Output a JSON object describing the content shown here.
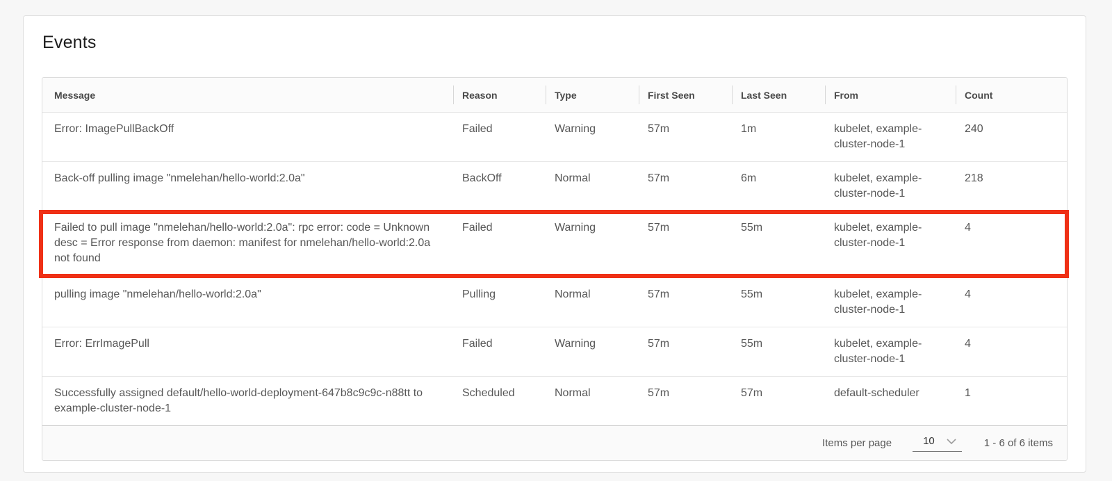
{
  "card": {
    "title": "Events"
  },
  "table": {
    "columns": [
      {
        "key": "message",
        "label": "Message"
      },
      {
        "key": "reason",
        "label": "Reason"
      },
      {
        "key": "type",
        "label": "Type"
      },
      {
        "key": "first_seen",
        "label": "First Seen"
      },
      {
        "key": "last_seen",
        "label": "Last Seen"
      },
      {
        "key": "from",
        "label": "From"
      },
      {
        "key": "count",
        "label": "Count"
      }
    ],
    "rows": [
      {
        "message": "Error: ImagePullBackOff",
        "reason": "Failed",
        "type": "Warning",
        "first_seen": "57m",
        "last_seen": "1m",
        "from": "kubelet, example-cluster-node-1",
        "count": "240",
        "highlighted": false
      },
      {
        "message": "Back-off pulling image \"nmelehan/hello-world:2.0a\"",
        "reason": "BackOff",
        "type": "Normal",
        "first_seen": "57m",
        "last_seen": "6m",
        "from": "kubelet, example-cluster-node-1",
        "count": "218",
        "highlighted": false
      },
      {
        "message": "Failed to pull image \"nmelehan/hello-world:2.0a\": rpc error: code = Unknown desc = Error response from daemon: manifest for nmelehan/hello-world:2.0a not found",
        "reason": "Failed",
        "type": "Warning",
        "first_seen": "57m",
        "last_seen": "55m",
        "from": "kubelet, example-cluster-node-1",
        "count": "4",
        "highlighted": true
      },
      {
        "message": "pulling image \"nmelehan/hello-world:2.0a\"",
        "reason": "Pulling",
        "type": "Normal",
        "first_seen": "57m",
        "last_seen": "55m",
        "from": "kubelet, example-cluster-node-1",
        "count": "4",
        "highlighted": false
      },
      {
        "message": "Error: ErrImagePull",
        "reason": "Failed",
        "type": "Warning",
        "first_seen": "57m",
        "last_seen": "55m",
        "from": "kubelet, example-cluster-node-1",
        "count": "4",
        "highlighted": false
      },
      {
        "message": "Successfully assigned default/hello-world-deployment-647b8c9c9c-n88tt to example-cluster-node-1",
        "reason": "Scheduled",
        "type": "Normal",
        "first_seen": "57m",
        "last_seen": "57m",
        "from": "default-scheduler",
        "count": "1",
        "highlighted": false
      }
    ],
    "footer": {
      "items_per_page_label": "Items per page",
      "items_per_page_value": "10",
      "range_text": "1 - 6 of 6 items"
    }
  },
  "icons": {
    "page_size_chevron": "chevron-down"
  },
  "colors": {
    "highlight_border": "#ef3016",
    "card_background": "#ffffff",
    "page_background": "#f7f7f7",
    "header_text": "#4a4a4a",
    "body_text": "#575757"
  }
}
